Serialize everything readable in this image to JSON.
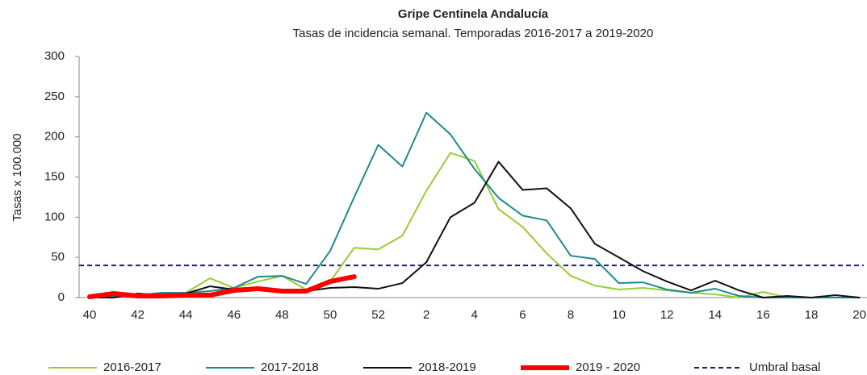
{
  "chart_data": {
    "type": "line",
    "title": "Gripe Centinela Andalucía",
    "subtitle": "Tasas de incidencia semanal. Temporadas 2016-2017 a 2019-2020",
    "y_label": "Tasas x 100.000",
    "categories": [
      "40",
      null,
      "42",
      null,
      "44",
      null,
      "46",
      null,
      "48",
      null,
      "50",
      null,
      "52",
      null,
      "2",
      null,
      "4",
      null,
      "6",
      null,
      "8",
      null,
      "10",
      null,
      "12",
      null,
      "14",
      null,
      "16",
      null,
      "18",
      null,
      "20"
    ],
    "series": [
      {
        "name": "2016-2017",
        "color": "#99cc33",
        "width": 2,
        "values": [
          0,
          2,
          3,
          5,
          6,
          24,
          12,
          20,
          27,
          10,
          20,
          62,
          60,
          77,
          133,
          180,
          170,
          110,
          88,
          55,
          27,
          15,
          10,
          12,
          9,
          6,
          4,
          0,
          7,
          0,
          0,
          0,
          0
        ]
      },
      {
        "name": "2017-2018",
        "color": "#1f8a8a",
        "width": 2,
        "values": [
          0,
          1,
          3,
          6,
          6,
          8,
          12,
          26,
          27,
          17,
          58,
          125,
          190,
          163,
          230,
          203,
          160,
          124,
          102,
          96,
          52,
          48,
          18,
          19,
          10,
          6,
          11,
          2,
          0,
          0,
          0,
          0,
          0
        ]
      },
      {
        "name": "2018-2019",
        "color": "#111111",
        "width": 2,
        "values": [
          0,
          0,
          5,
          3,
          5,
          14,
          10,
          10,
          10,
          8,
          12,
          13,
          11,
          18,
          44,
          100,
          118,
          169,
          134,
          136,
          111,
          67,
          50,
          33,
          20,
          9,
          21,
          9,
          0,
          2,
          0,
          3,
          0
        ]
      },
      {
        "name": "2019 - 2020",
        "color": "#ff0000",
        "width": 6,
        "values": [
          1,
          5,
          2,
          2,
          3,
          3,
          9,
          11,
          8,
          8,
          20,
          26,
          null,
          null,
          null,
          null,
          null,
          null,
          null,
          null,
          null,
          null,
          null,
          null,
          null,
          null,
          null,
          null,
          null,
          null,
          null,
          null,
          null
        ]
      }
    ],
    "reference_line": {
      "name": "Umbral basal",
      "value": 40,
      "color": "#1a1a8c",
      "dashed": true
    },
    "ylim": [
      0,
      300
    ],
    "yticks": [
      0,
      50,
      100,
      150,
      200,
      250,
      300
    ],
    "grid": false
  }
}
